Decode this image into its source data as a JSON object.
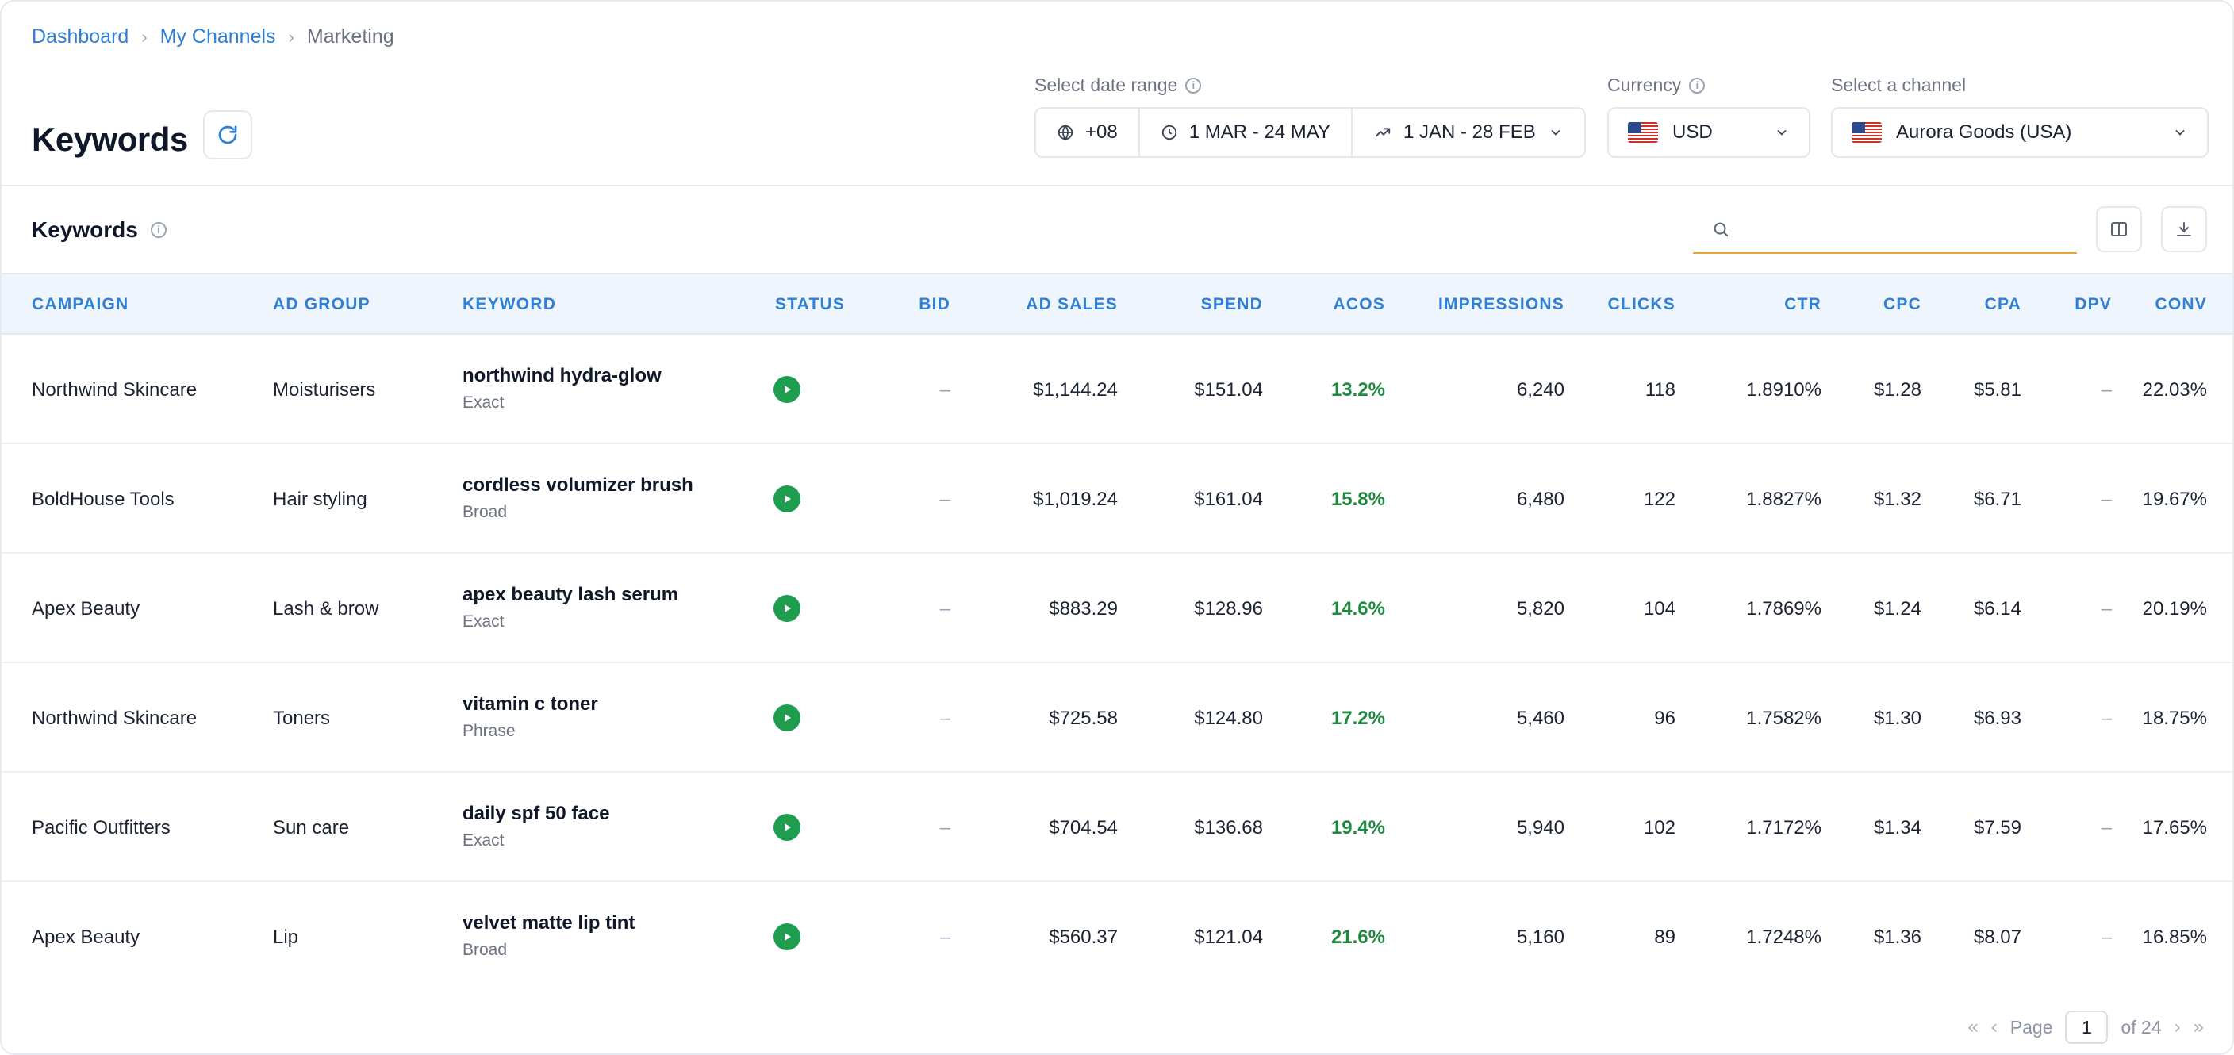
{
  "breadcrumb": {
    "items": [
      "Dashboard",
      "My Channels"
    ],
    "current": "Marketing",
    "separator": "›"
  },
  "header": {
    "title": "Keywords"
  },
  "controls": {
    "date_range_label": "Select date range",
    "timezone": "+08",
    "primary_range": "1 MAR - 24 MAY",
    "compare_range": "1 JAN - 28 FEB",
    "currency_label": "Currency",
    "currency_value": "USD",
    "channel_label": "Select a channel",
    "channel_value": "Aurora Goods (USA)"
  },
  "section": {
    "title": "Keywords",
    "search_placeholder": ""
  },
  "table": {
    "columns": [
      "CAMPAIGN",
      "AD GROUP",
      "KEYWORD",
      "STATUS",
      "BID",
      "AD SALES",
      "SPEND",
      "ACOS",
      "IMPRESSIONS",
      "CLICKS",
      "CTR",
      "CPC",
      "CPA",
      "DPV",
      "CONV"
    ],
    "rows": [
      {
        "campaign": "Northwind Skincare",
        "ad_group": "Moisturisers",
        "keyword": "northwind hydra-glow",
        "match": "Exact",
        "status": "active",
        "bid": "–",
        "ad_sales": "$1,144.24",
        "spend": "$151.04",
        "acos": "13.2%",
        "impressions": "6,240",
        "clicks": "118",
        "ctr": "1.8910%",
        "cpc": "$1.28",
        "cpa": "$5.81",
        "dpv": "–",
        "conv": "22.03%"
      },
      {
        "campaign": "BoldHouse Tools",
        "ad_group": "Hair styling",
        "keyword": "cordless volumizer brush",
        "match": "Broad",
        "status": "active",
        "bid": "–",
        "ad_sales": "$1,019.24",
        "spend": "$161.04",
        "acos": "15.8%",
        "impressions": "6,480",
        "clicks": "122",
        "ctr": "1.8827%",
        "cpc": "$1.32",
        "cpa": "$6.71",
        "dpv": "–",
        "conv": "19.67%"
      },
      {
        "campaign": "Apex Beauty",
        "ad_group": "Lash & brow",
        "keyword": "apex beauty lash serum",
        "match": "Exact",
        "status": "active",
        "bid": "–",
        "ad_sales": "$883.29",
        "spend": "$128.96",
        "acos": "14.6%",
        "impressions": "5,820",
        "clicks": "104",
        "ctr": "1.7869%",
        "cpc": "$1.24",
        "cpa": "$6.14",
        "dpv": "–",
        "conv": "20.19%"
      },
      {
        "campaign": "Northwind Skincare",
        "ad_group": "Toners",
        "keyword": "vitamin c toner",
        "match": "Phrase",
        "status": "active",
        "bid": "–",
        "ad_sales": "$725.58",
        "spend": "$124.80",
        "acos": "17.2%",
        "impressions": "5,460",
        "clicks": "96",
        "ctr": "1.7582%",
        "cpc": "$1.30",
        "cpa": "$6.93",
        "dpv": "–",
        "conv": "18.75%"
      },
      {
        "campaign": "Pacific Outfitters",
        "ad_group": "Sun care",
        "keyword": "daily spf 50 face",
        "match": "Exact",
        "status": "active",
        "bid": "–",
        "ad_sales": "$704.54",
        "spend": "$136.68",
        "acos": "19.4%",
        "impressions": "5,940",
        "clicks": "102",
        "ctr": "1.7172%",
        "cpc": "$1.34",
        "cpa": "$7.59",
        "dpv": "–",
        "conv": "17.65%"
      },
      {
        "campaign": "Apex Beauty",
        "ad_group": "Lip",
        "keyword": "velvet matte lip tint",
        "match": "Broad",
        "status": "active",
        "bid": "–",
        "ad_sales": "$560.37",
        "spend": "$121.04",
        "acos": "21.6%",
        "impressions": "5,160",
        "clicks": "89",
        "ctr": "1.7248%",
        "cpc": "$1.36",
        "cpa": "$8.07",
        "dpv": "–",
        "conv": "16.85%"
      }
    ]
  },
  "pagination": {
    "first": "«",
    "prev": "‹",
    "page_label": "Page",
    "current_page": "1",
    "of_label": "of 24",
    "next": "›",
    "last": "»"
  },
  "colors": {
    "accent": "#2f7fd6",
    "status_active": "#1f9d4f",
    "acos_green": "#1f8a3f",
    "header_bg": "#eef5fd",
    "search_underline": "#e8a33d"
  }
}
